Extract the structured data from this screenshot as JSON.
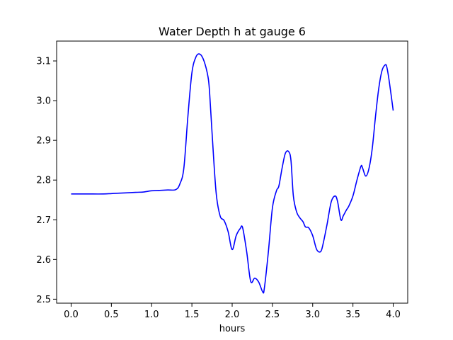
{
  "chart_data": {
    "type": "line",
    "title": "Water Depth h at gauge 6",
    "xlabel": "hours",
    "ylabel": "",
    "xlim": [
      -0.18,
      4.18
    ],
    "ylim": [
      2.49,
      3.15
    ],
    "xticks": [
      0.0,
      0.5,
      1.0,
      1.5,
      2.0,
      2.5,
      3.0,
      3.5,
      4.0
    ],
    "xtick_labels": [
      "0.0",
      "0.5",
      "1.0",
      "1.5",
      "2.0",
      "2.5",
      "3.0",
      "3.5",
      "4.0"
    ],
    "yticks": [
      2.5,
      2.6,
      2.7,
      2.8,
      2.9,
      3.0,
      3.1
    ],
    "ytick_labels": [
      "2.5",
      "2.6",
      "2.7",
      "2.8",
      "2.9",
      "3.0",
      "3.1"
    ],
    "grid": false,
    "series": [
      {
        "color": "#0000ff",
        "x": [
          0.0,
          0.2,
          0.4,
          0.5,
          0.6,
          0.8,
          0.9,
          1.0,
          1.1,
          1.2,
          1.3,
          1.35,
          1.4,
          1.45,
          1.5,
          1.55,
          1.6,
          1.65,
          1.7,
          1.72,
          1.75,
          1.8,
          1.85,
          1.9,
          1.95,
          2.0,
          2.05,
          2.1,
          2.13,
          2.18,
          2.23,
          2.28,
          2.33,
          2.38,
          2.4,
          2.45,
          2.5,
          2.55,
          2.58,
          2.62,
          2.66,
          2.7,
          2.73,
          2.76,
          2.8,
          2.84,
          2.88,
          2.91,
          2.95,
          3.0,
          3.05,
          3.1,
          3.13,
          3.18,
          3.23,
          3.28,
          3.31,
          3.35,
          3.38,
          3.42,
          3.45,
          3.5,
          3.55,
          3.6,
          3.62,
          3.66,
          3.7,
          3.74,
          3.78,
          3.82,
          3.86,
          3.9,
          3.92,
          3.95,
          4.0
        ],
        "y": [
          2.765,
          2.765,
          2.765,
          2.766,
          2.767,
          2.769,
          2.77,
          2.773,
          2.774,
          2.775,
          2.776,
          2.79,
          2.83,
          2.96,
          3.07,
          3.11,
          3.117,
          3.1,
          3.06,
          3.02,
          2.92,
          2.77,
          2.71,
          2.698,
          2.67,
          2.625,
          2.66,
          2.678,
          2.68,
          2.62,
          2.545,
          2.553,
          2.543,
          2.518,
          2.528,
          2.62,
          2.73,
          2.773,
          2.785,
          2.83,
          2.867,
          2.872,
          2.85,
          2.76,
          2.72,
          2.705,
          2.695,
          2.682,
          2.68,
          2.66,
          2.625,
          2.62,
          2.64,
          2.69,
          2.745,
          2.76,
          2.745,
          2.7,
          2.71,
          2.725,
          2.735,
          2.76,
          2.8,
          2.835,
          2.83,
          2.81,
          2.83,
          2.88,
          2.96,
          3.03,
          3.075,
          3.09,
          3.085,
          3.05,
          2.975
        ]
      }
    ]
  }
}
